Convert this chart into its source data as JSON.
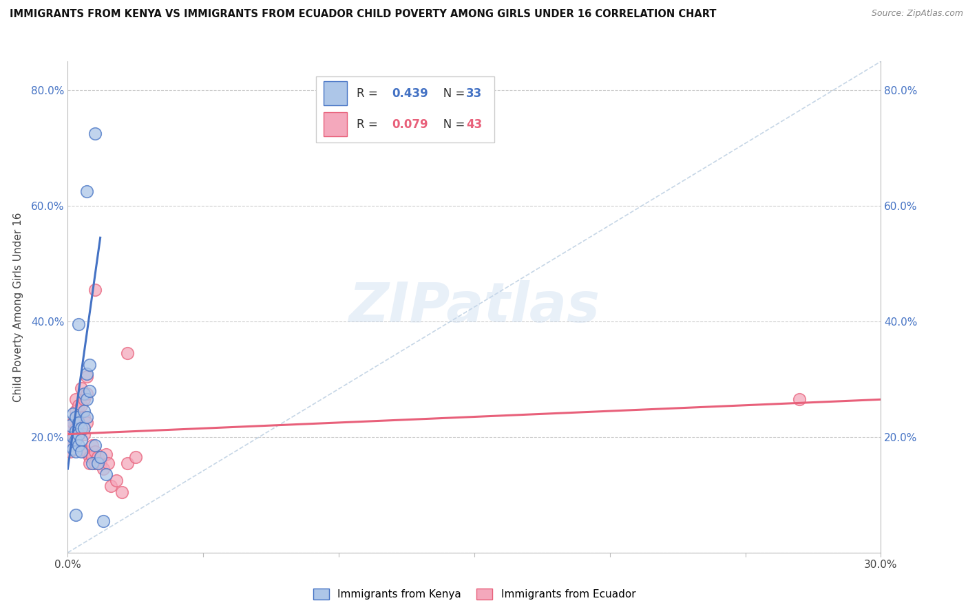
{
  "title": "IMMIGRANTS FROM KENYA VS IMMIGRANTS FROM ECUADOR CHILD POVERTY AMONG GIRLS UNDER 16 CORRELATION CHART",
  "source": "Source: ZipAtlas.com",
  "ylabel": "Child Poverty Among Girls Under 16",
  "xlim": [
    0.0,
    0.3
  ],
  "ylim": [
    0.0,
    0.85
  ],
  "xticks": [
    0.0,
    0.05,
    0.1,
    0.15,
    0.2,
    0.25,
    0.3
  ],
  "yticks": [
    0.0,
    0.2,
    0.4,
    0.6,
    0.8
  ],
  "kenya_color": "#adc6e8",
  "ecuador_color": "#f4a8bc",
  "kenya_line_color": "#4472c4",
  "ecuador_line_color": "#e8607a",
  "diag_line_color": "#b8cce0",
  "kenya_R": "0.439",
  "kenya_N": "33",
  "ecuador_R": "0.079",
  "ecuador_N": "43",
  "watermark": "ZIPatlas",
  "kenya_scatter": [
    [
      0.001,
      0.22
    ],
    [
      0.001,
      0.185
    ],
    [
      0.002,
      0.24
    ],
    [
      0.002,
      0.2
    ],
    [
      0.002,
      0.18
    ],
    [
      0.003,
      0.235
    ],
    [
      0.003,
      0.21
    ],
    [
      0.003,
      0.195
    ],
    [
      0.003,
      0.175
    ],
    [
      0.003,
      0.065
    ],
    [
      0.004,
      0.225
    ],
    [
      0.004,
      0.205
    ],
    [
      0.004,
      0.185
    ],
    [
      0.005,
      0.215
    ],
    [
      0.005,
      0.195
    ],
    [
      0.005,
      0.175
    ],
    [
      0.006,
      0.275
    ],
    [
      0.006,
      0.245
    ],
    [
      0.006,
      0.215
    ],
    [
      0.007,
      0.265
    ],
    [
      0.007,
      0.235
    ],
    [
      0.007,
      0.31
    ],
    [
      0.008,
      0.325
    ],
    [
      0.008,
      0.28
    ],
    [
      0.009,
      0.155
    ],
    [
      0.01,
      0.185
    ],
    [
      0.011,
      0.155
    ],
    [
      0.012,
      0.165
    ],
    [
      0.013,
      0.055
    ],
    [
      0.014,
      0.135
    ],
    [
      0.004,
      0.395
    ],
    [
      0.007,
      0.625
    ],
    [
      0.01,
      0.725
    ]
  ],
  "ecuador_scatter": [
    [
      0.001,
      0.215
    ],
    [
      0.001,
      0.195
    ],
    [
      0.001,
      0.175
    ],
    [
      0.002,
      0.225
    ],
    [
      0.002,
      0.205
    ],
    [
      0.002,
      0.185
    ],
    [
      0.003,
      0.265
    ],
    [
      0.003,
      0.245
    ],
    [
      0.003,
      0.215
    ],
    [
      0.003,
      0.195
    ],
    [
      0.004,
      0.255
    ],
    [
      0.004,
      0.235
    ],
    [
      0.004,
      0.205
    ],
    [
      0.005,
      0.285
    ],
    [
      0.005,
      0.255
    ],
    [
      0.005,
      0.215
    ],
    [
      0.006,
      0.265
    ],
    [
      0.006,
      0.235
    ],
    [
      0.006,
      0.205
    ],
    [
      0.006,
      0.175
    ],
    [
      0.007,
      0.305
    ],
    [
      0.007,
      0.275
    ],
    [
      0.007,
      0.225
    ],
    [
      0.007,
      0.175
    ],
    [
      0.008,
      0.165
    ],
    [
      0.008,
      0.155
    ],
    [
      0.009,
      0.185
    ],
    [
      0.009,
      0.165
    ],
    [
      0.01,
      0.175
    ],
    [
      0.01,
      0.155
    ],
    [
      0.011,
      0.165
    ],
    [
      0.012,
      0.155
    ],
    [
      0.013,
      0.145
    ],
    [
      0.014,
      0.17
    ],
    [
      0.015,
      0.155
    ],
    [
      0.016,
      0.115
    ],
    [
      0.018,
      0.125
    ],
    [
      0.02,
      0.105
    ],
    [
      0.022,
      0.155
    ],
    [
      0.025,
      0.165
    ],
    [
      0.01,
      0.455
    ],
    [
      0.022,
      0.345
    ],
    [
      0.27,
      0.265
    ]
  ],
  "kenya_line_x": [
    0.0,
    0.012
  ],
  "kenya_line_y": [
    0.145,
    0.545
  ],
  "ecuador_line_x": [
    0.0,
    0.3
  ],
  "ecuador_line_y": [
    0.205,
    0.265
  ],
  "diag_line_x": [
    0.0,
    0.3
  ],
  "diag_line_y": [
    0.0,
    0.85
  ]
}
